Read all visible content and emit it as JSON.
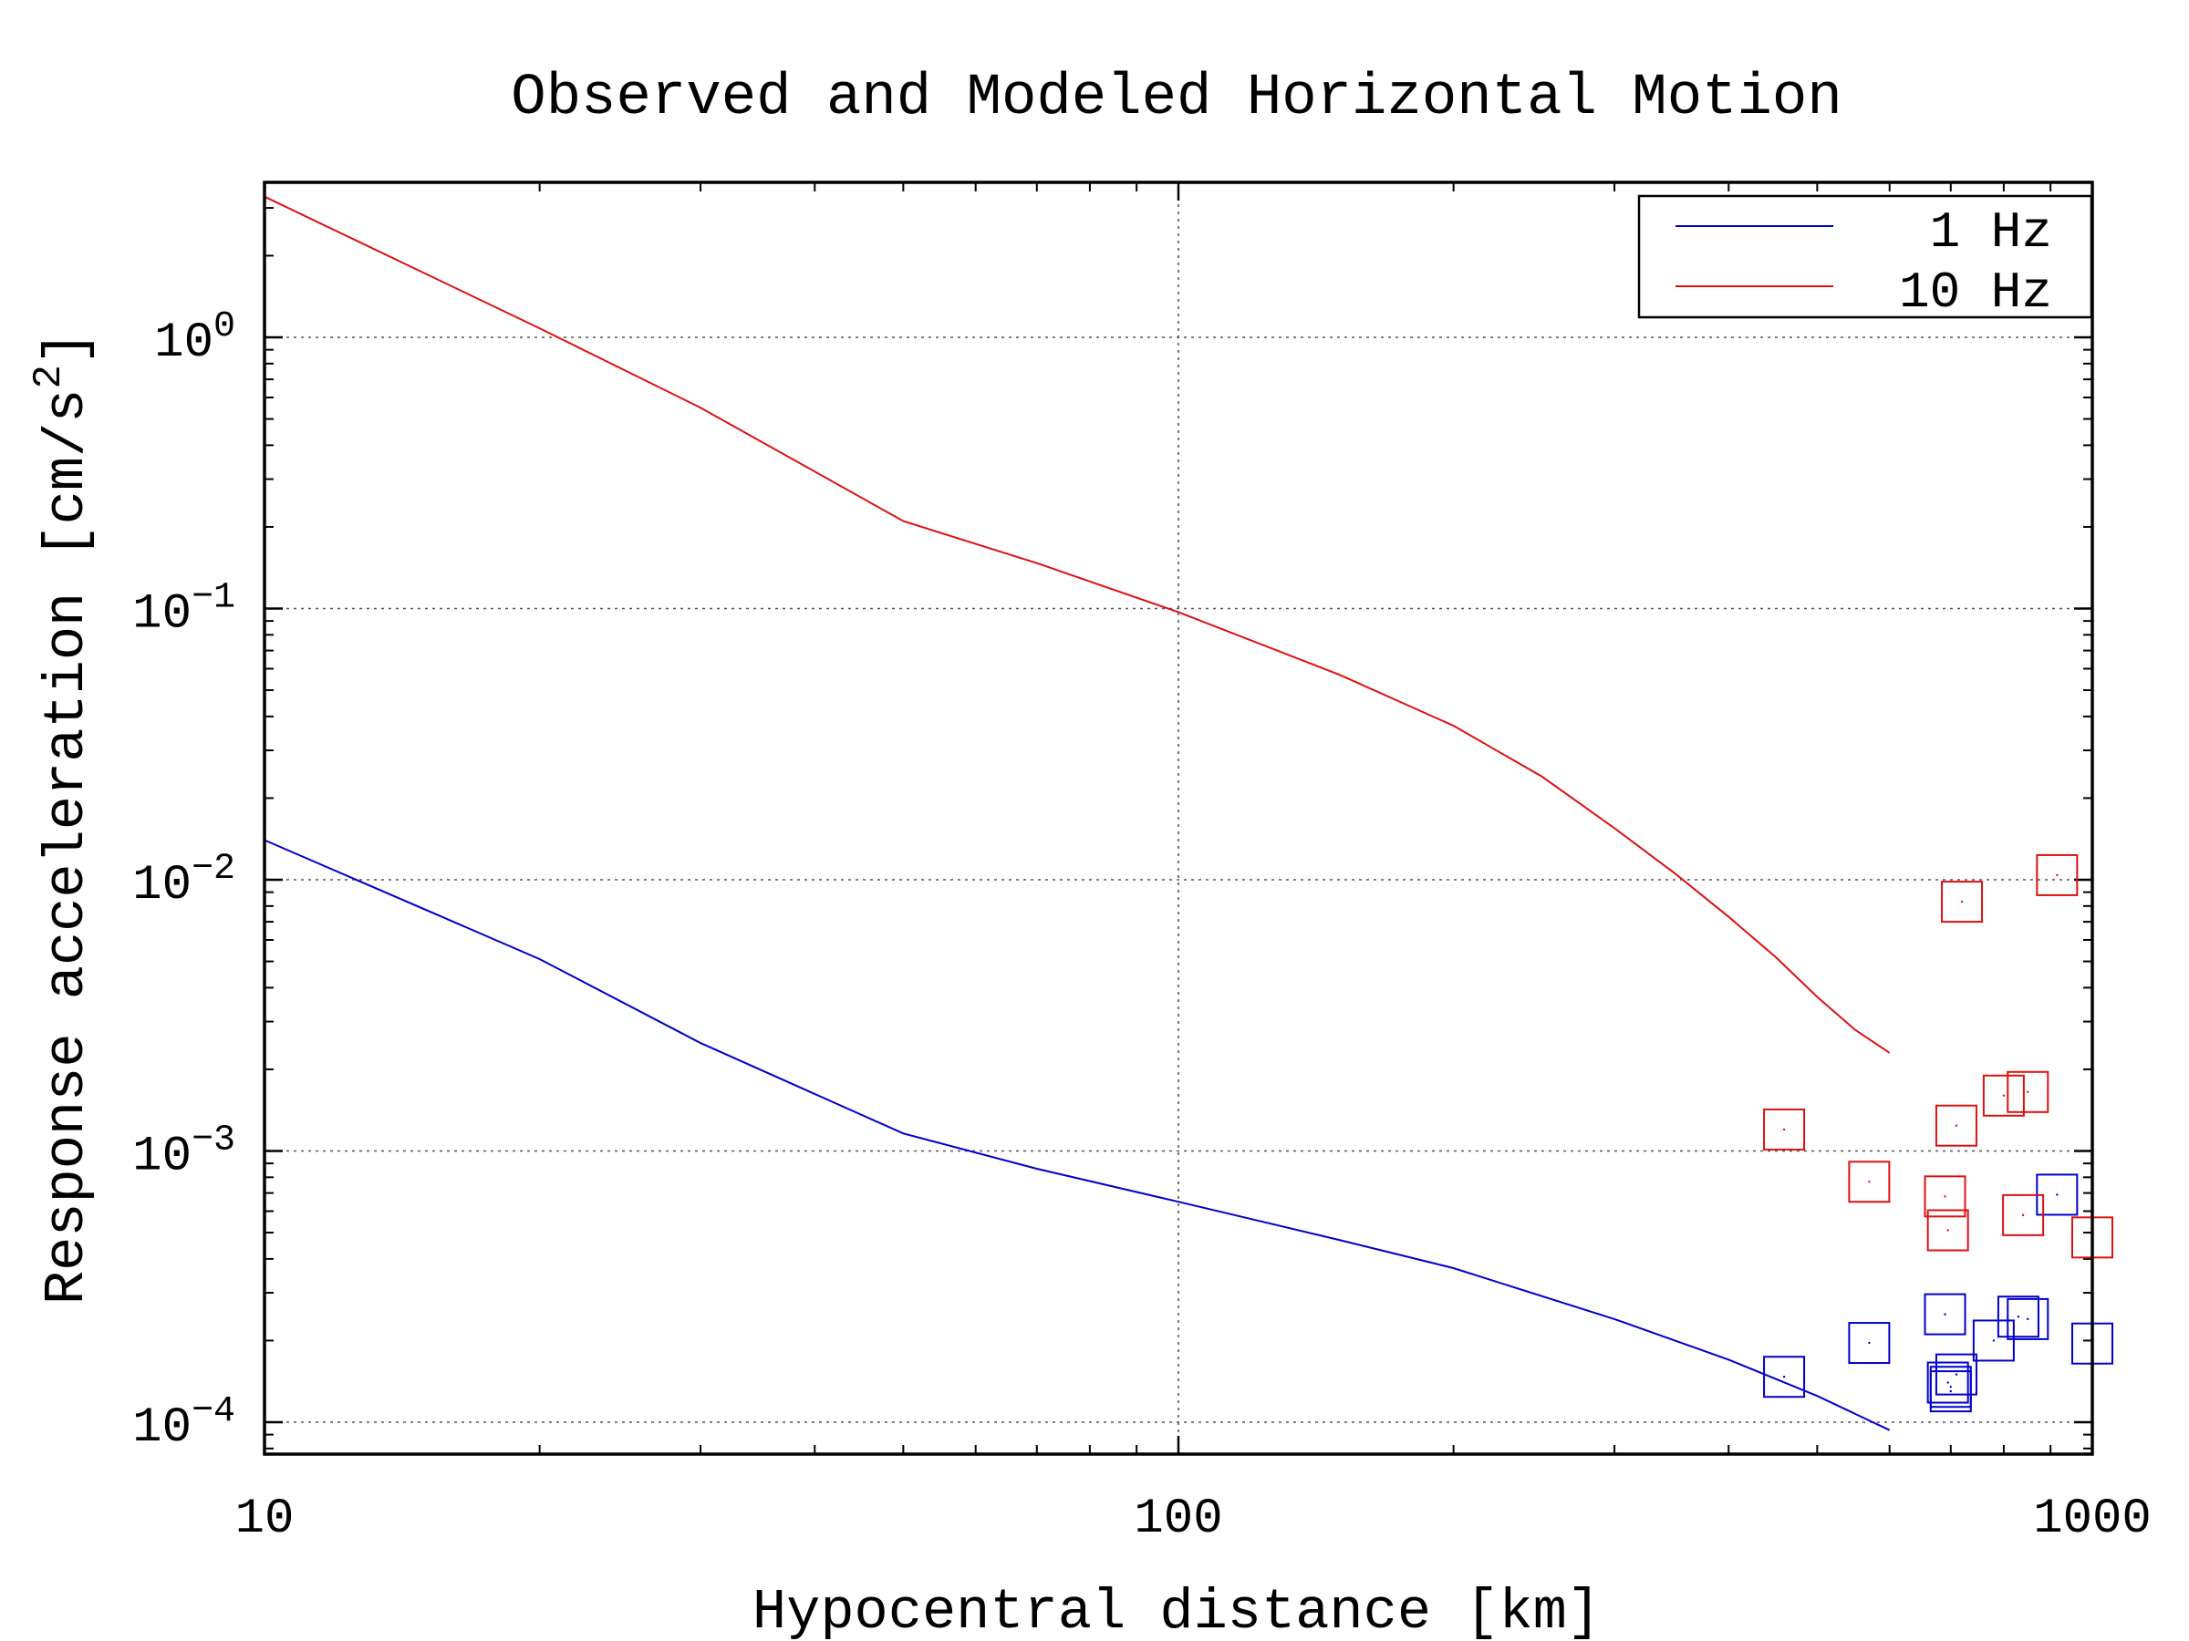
{
  "chart_data": {
    "type": "scatter",
    "title": "Observed and Modeled Horizontal Motion",
    "xlabel": "Hypocentral distance [km]",
    "ylabel": "Response acceleration [cm/s",
    "ylabel_superscript": "2",
    "ylabel_suffix": "]",
    "xscale": "log",
    "yscale": "log",
    "xlim": [
      10,
      1000
    ],
    "ylim": [
      7.8e-05,
      3.5
    ],
    "grid": true,
    "legend_position": "top-right",
    "x_ticks": [
      {
        "value": 10,
        "label": "10"
      },
      {
        "value": 100,
        "label": "100"
      },
      {
        "value": 1000,
        "label": "1000"
      }
    ],
    "y_ticks": [
      {
        "value": 1,
        "base": "10",
        "exp": "0"
      },
      {
        "value": 0.1,
        "base": "10",
        "exp": "−1"
      },
      {
        "value": 0.01,
        "base": "10",
        "exp": "−2"
      },
      {
        "value": 0.001,
        "base": "10",
        "exp": "−3"
      },
      {
        "value": 0.0001,
        "base": "10",
        "exp": "−4"
      }
    ],
    "series": [
      {
        "name": "1 Hz",
        "color": "#0000cc",
        "line": {
          "x": [
            10,
            20,
            30,
            50,
            70,
            100,
            150,
            200,
            300,
            400,
            500,
            600
          ],
          "y": [
            0.014,
            0.0051,
            0.0025,
            0.00116,
            0.00086,
            0.00065,
            0.00047,
            0.00037,
            0.00024,
            0.00017,
            0.000125,
            9.35e-05
          ]
        },
        "observed": {
          "x": [
            460,
            570,
            690,
            695,
            700,
            700,
            710,
            780,
            830,
            850,
            915,
            1000
          ],
          "y": [
            0.000147,
            0.000196,
            0.00025,
            0.00014,
            0.00013,
            0.000135,
            0.00015,
            0.0002,
            0.000245,
            0.00024,
            0.00069,
            0.000195
          ]
        }
      },
      {
        "name": "10 Hz",
        "color": "#dd1111",
        "line": {
          "x": [
            10,
            20,
            30,
            50,
            70,
            100,
            150,
            200,
            250,
            300,
            350,
            400,
            450,
            500,
            550,
            600
          ],
          "y": [
            3.3,
            1.08,
            0.55,
            0.21,
            0.147,
            0.097,
            0.057,
            0.037,
            0.024,
            0.0155,
            0.0105,
            0.0073,
            0.0052,
            0.0037,
            0.0028,
            0.0023
          ]
        },
        "observed": {
          "x": [
            460,
            570,
            690,
            695,
            710,
            720,
            800,
            840,
            850,
            915,
            1000
          ],
          "y": [
            0.0012,
            0.00077,
            0.00068,
            0.00051,
            0.00124,
            0.0083,
            0.0016,
            0.00058,
            0.00165,
            0.0104,
            0.00048
          ]
        }
      }
    ]
  }
}
